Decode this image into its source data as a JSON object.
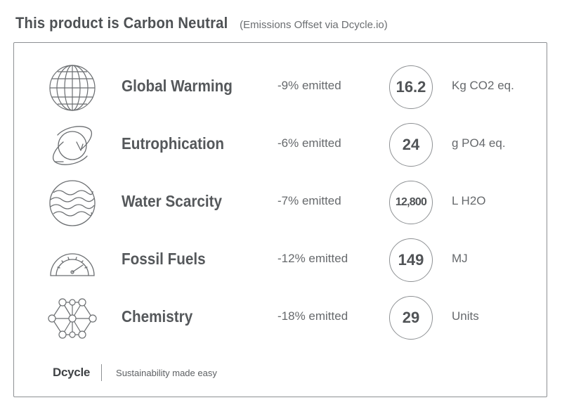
{
  "header": {
    "title": "This product is Carbon Neutral",
    "subtitle": "(Emissions Offset via Dcycle.io)"
  },
  "rows": [
    {
      "icon": "globe-icon",
      "name": "Global Warming",
      "percent": "-9% emitted",
      "value": "16.2",
      "unit": "Kg CO2 eq."
    },
    {
      "icon": "cycle-icon",
      "name": "Eutrophication",
      "percent": "-6% emitted",
      "value": "24",
      "unit": "g PO4 eq."
    },
    {
      "icon": "water-icon",
      "name": "Water Scarcity",
      "percent": "-7% emitted",
      "value": "12,800",
      "unit": "L H2O"
    },
    {
      "icon": "gauge-icon",
      "name": "Fossil Fuels",
      "percent": "-12% emitted",
      "value": "149",
      "unit": "MJ"
    },
    {
      "icon": "molecule-icon",
      "name": "Chemistry",
      "percent": "-18% emitted",
      "value": "29",
      "unit": "Units"
    }
  ],
  "footer": {
    "logo": "Dcycle",
    "tagline": "Sustainability made easy"
  }
}
